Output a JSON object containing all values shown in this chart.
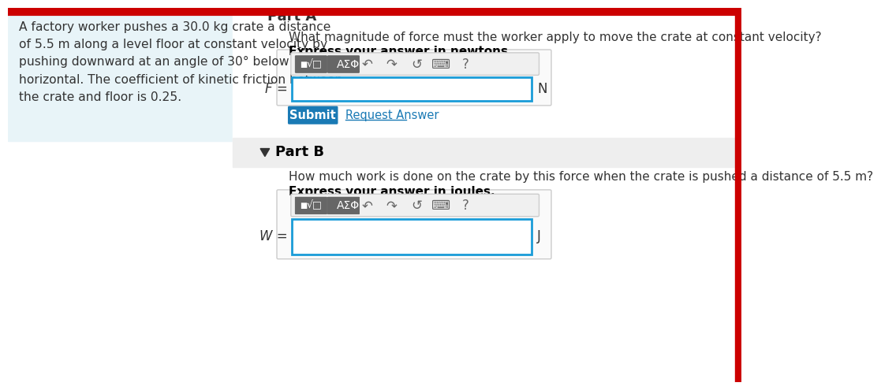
{
  "bg_color": "#ffffff",
  "left_panel_bg": "#e8f4f8",
  "left_panel_text": "A factory worker pushes a 30.0 kg crate a distance\nof 5.5 m along a level floor at constant velocity by\npushing downward at an angle of 30° below the\nhorizontal. The coefficient of kinetic friction between\nthe crate and floor is 0.25.",
  "top_border_color": "#cc0000",
  "part_a_question": "What magnitude of force must the worker apply to move the crate at constant velocity?",
  "part_a_express": "Express your answer in newtons.",
  "part_a_var": "F =",
  "part_a_unit": "N",
  "submit_text": "Submit",
  "submit_bg": "#1a7ab5",
  "submit_text_color": "#ffffff",
  "request_answer_text": "Request Answer",
  "request_answer_color": "#1a7ab5",
  "part_b_label": "Part B",
  "part_b_question": "How much work is done on the crate by this force when the crate is pushed a distance of 5.5 m?",
  "part_b_express": "Express your answer in joules.",
  "part_b_var": "W =",
  "part_b_unit": "J",
  "input_border_color": "#1a9cd8",
  "input_bg": "#ffffff",
  "part_b_section_bg": "#eeeeee",
  "text_color": "#333333",
  "bold_text_color": "#000000"
}
